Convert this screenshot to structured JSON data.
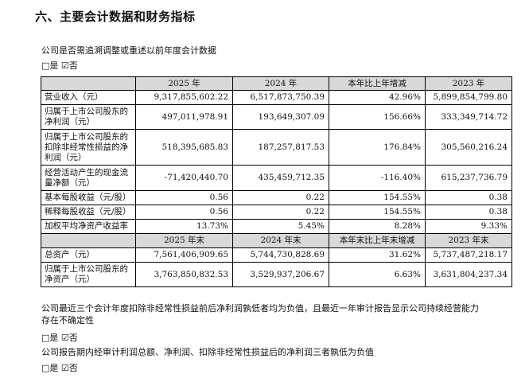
{
  "heading": "六、主要会计数据和财务指标",
  "intro": "公司是否需追溯调整或重述以前年度会计数据",
  "option_line_1": "□是 ☑否",
  "table1": {
    "headers": [
      "",
      "2025 年",
      "2024 年",
      "本年比上年增减",
      "2023 年"
    ],
    "rows": [
      {
        "label": "营业收入（元）",
        "c1": "9,317,855,602.22",
        "c2": "6,517,873,750.39",
        "c3": "42.96%",
        "c4": "5,899,854,799.80"
      },
      {
        "label": "归属于上市公司股东的净利润（元）",
        "c1": "497,011,978.91",
        "c2": "193,649,307.09",
        "c3": "156.66%",
        "c4": "333,349,714.72"
      },
      {
        "label": "归属于上市公司股东的扣除非经常性损益的净利润（元）",
        "c1": "518,395,685.83",
        "c2": "187,257,817.53",
        "c3": "176.84%",
        "c4": "305,560,216.24"
      },
      {
        "label": "经营活动产生的现金流量净额（元）",
        "c1": "-71,420,440.70",
        "c2": "435,459,712.35",
        "c3": "-116.40%",
        "c4": "615,237,736.79"
      },
      {
        "label": "基本每股收益（元/股）",
        "c1": "0.56",
        "c2": "0.22",
        "c3": "154.55%",
        "c4": "0.38"
      },
      {
        "label": "稀释每股收益（元/股）",
        "c1": "0.56",
        "c2": "0.22",
        "c3": "154.55%",
        "c4": "0.38"
      },
      {
        "label": "加权平均净资产收益率",
        "c1": "13.73%",
        "c2": "5.45%",
        "c3": "8.28%",
        "c4": "9.33%"
      }
    ]
  },
  "table2": {
    "headers": [
      "",
      "2025 年末",
      "2024 年末",
      "本年末比上年末增减",
      "2023 年末"
    ],
    "rows": [
      {
        "label": "总资产（元）",
        "c1": "7,561,406,909.65",
        "c2": "5,744,730,828.69",
        "c3": "31.62%",
        "c4": "5,737,487,218.17"
      },
      {
        "label": "归属于上市公司股东的净资产（元）",
        "c1": "3,763,850,832.53",
        "c2": "3,529,937,206.67",
        "c3": "6.63%",
        "c4": "3,631,804,237.34"
      }
    ]
  },
  "note1": "公司最近三个会计年度扣除非经常性损益前后净利润孰低者均为负值，且最近一年审计报告显示公司持续经营能力存在不确定性",
  "option_line_2": "□是 ☑否",
  "note2": "公司报告期内经审计利润总额、净利润、扣除非经常性损益后的净利润三者孰低为负值",
  "option_line_3": "□是 ☑否"
}
